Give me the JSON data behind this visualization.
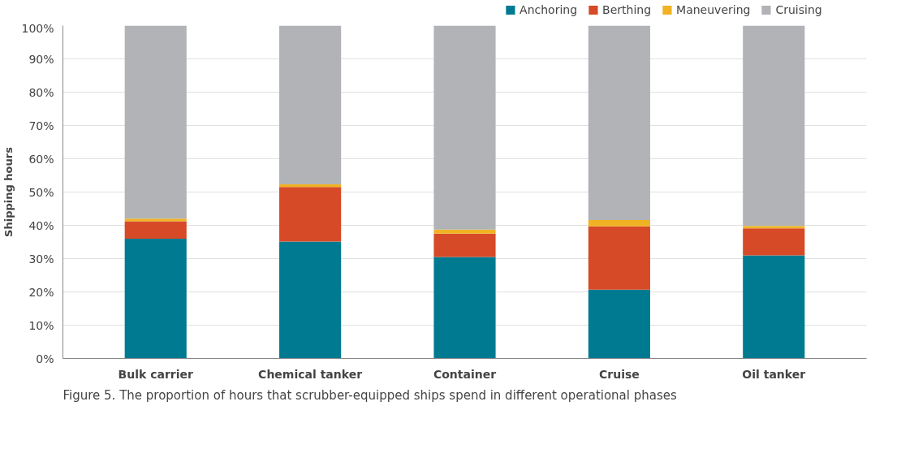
{
  "chart_data": {
    "type": "bar",
    "stacked": true,
    "ylabel": "Shipping hours",
    "categories": [
      "Bulk carrier",
      "Chemical tanker",
      "Container",
      "Cruise",
      "Oil tanker"
    ],
    "series": [
      {
        "name": "Anchoring",
        "color": "#007a91",
        "values": [
          36.0,
          35.1,
          30.5,
          20.7,
          31.0
        ]
      },
      {
        "name": "Berthing",
        "color": "#d64a27",
        "values": [
          5.2,
          16.4,
          7.0,
          19.0,
          8.1
        ]
      },
      {
        "name": "Maneuvering",
        "color": "#f0b323",
        "values": [
          0.8,
          0.8,
          1.2,
          1.9,
          0.7
        ]
      },
      {
        "name": "Cruising",
        "color": "#b1b3b6",
        "values": [
          58.0,
          47.7,
          61.3,
          58.4,
          60.2
        ]
      }
    ],
    "ylim": [
      0,
      100
    ],
    "yticks": [
      {
        "value": 0,
        "label": "0%"
      },
      {
        "value": 10,
        "label": "10%"
      },
      {
        "value": 20,
        "label": "20%"
      },
      {
        "value": 30,
        "label": "30%"
      },
      {
        "value": 40,
        "label": "40%"
      },
      {
        "value": 50,
        "label": "50%"
      },
      {
        "value": 60,
        "label": "60%"
      },
      {
        "value": 70,
        "label": "70%"
      },
      {
        "value": 80,
        "label": "80%"
      },
      {
        "value": 90,
        "label": "90%"
      },
      {
        "value": 100,
        "label": "100%"
      }
    ],
    "grid": "y",
    "legend": "top right",
    "annotations": [
      "Figure 5. The proportion of hours that scrubber-equipped ships spend in different operational phases"
    ]
  }
}
